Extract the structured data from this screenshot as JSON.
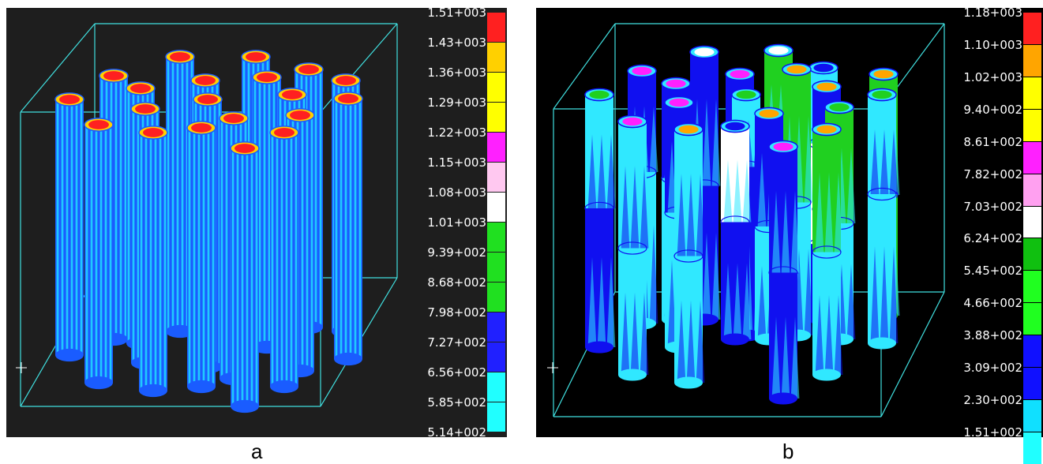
{
  "panels": [
    {
      "id": "a",
      "caption": "a",
      "background": "#1e1e1e",
      "scale_labels": [
        "1.51+003",
        "1.43+003",
        "1.36+003",
        "1.29+003",
        "1.22+003",
        "1.15+003",
        "1.08+003",
        "1.01+003",
        "9.39+002",
        "8.68+002",
        "7.98+002",
        "7.27+002",
        "6.56+002",
        "5.85+002",
        "5.14+002"
      ],
      "scale_colors": [
        "#ff2020",
        "#ffd000",
        "#ffff00",
        "#ffff00",
        "#ff20ff",
        "#ffc8f0",
        "#ffffff",
        "#20e020",
        "#20e020",
        "#20e020",
        "#2020ff",
        "#2020ff",
        "#20ffff",
        "#20ffff"
      ],
      "rod_colors": {
        "stripe_dark": "#1a5cff",
        "stripe_light": "#20c8ff",
        "hot": "#ff2020",
        "ring": "#ffd000"
      }
    },
    {
      "id": "b",
      "caption": "b",
      "background": "#000000",
      "scale_labels": [
        "1.18+003",
        "1.10+003",
        "1.02+003",
        "9.40+002",
        "8.61+002",
        "7.82+002",
        "7.03+002",
        "6.24+002",
        "5.45+002",
        "4.66+002",
        "3.88+002",
        "3.09+002",
        "2.30+002",
        "1.51+002"
      ],
      "scale_colors": [
        "#ff2020",
        "#ffa500",
        "#ffff00",
        "#ffff00",
        "#ff20ff",
        "#ffa0f0",
        "#ffffff",
        "#10c010",
        "#20ff20",
        "#20ff20",
        "#1010ff",
        "#1010ff",
        "#10e0ff",
        "#20ffff"
      ],
      "rod_colors": {
        "blue": "#1010f0",
        "cyan": "#30e8ff",
        "green": "#20d020",
        "white": "#ffffff",
        "pink": "#ff20ff",
        "orange": "#ffa500"
      }
    }
  ]
}
